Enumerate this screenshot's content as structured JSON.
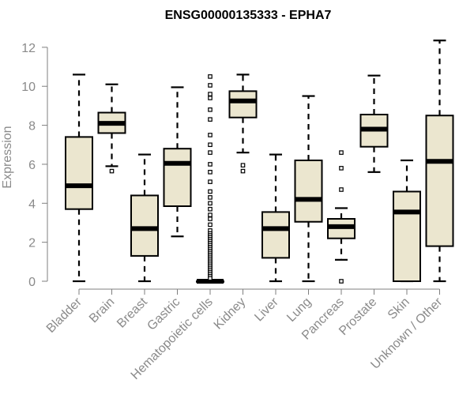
{
  "chart_data": {
    "type": "box",
    "title": "ENSG00000135333 - EPHA7",
    "ylabel": "Expression",
    "xlabel": "",
    "ylim": [
      0,
      12.4
    ],
    "y_ticks": [
      0,
      2,
      4,
      6,
      8,
      10,
      12
    ],
    "colors": {
      "box_fill": "#ebe6cf",
      "box_stroke": "#000000",
      "axis": "#7f7f7f",
      "text": "#8a8a8a",
      "title": "#000000"
    },
    "categories": [
      "Bladder",
      "Brain",
      "Breast",
      "Gastric",
      "Hematopoietic cells",
      "Kidney",
      "Liver",
      "Lung",
      "Pancreas",
      "Prostate",
      "Skin",
      "Unknown / Other"
    ],
    "boxes": [
      {
        "name": "Bladder",
        "min": 0,
        "q1": 3.7,
        "median": 4.9,
        "q3": 7.4,
        "max": 10.6,
        "outliers": []
      },
      {
        "name": "Brain",
        "min": 5.9,
        "q1": 7.6,
        "median": 8.1,
        "q3": 8.65,
        "max": 10.1,
        "outliers": [
          5.65
        ]
      },
      {
        "name": "Breast",
        "min": 0,
        "q1": 1.3,
        "median": 2.7,
        "q3": 4.4,
        "max": 6.5,
        "outliers": []
      },
      {
        "name": "Gastric",
        "min": 2.3,
        "q1": 3.85,
        "median": 6.05,
        "q3": 6.8,
        "max": 9.95,
        "outliers": []
      },
      {
        "name": "Hematopoietic cells",
        "min": 0,
        "q1": 0,
        "median": 0,
        "q3": 0,
        "max": 0,
        "outliers": [
          10.5,
          10.05,
          9.6,
          9.4,
          8.8,
          8.3,
          7.5,
          7.0,
          6.6,
          6.0,
          5.6,
          5.1,
          4.6,
          4.3,
          4.0,
          3.7,
          3.4,
          3.2,
          2.9,
          2.6,
          2.45,
          2.35,
          2.25,
          2.15,
          2.05,
          1.95,
          1.85,
          1.75,
          1.65,
          1.55,
          1.45,
          1.35,
          1.25,
          1.15,
          1.05,
          0.95,
          0.85,
          0.75,
          0.65,
          0.55,
          0.45,
          0.35,
          0.25,
          0.15
        ]
      },
      {
        "name": "Kidney",
        "min": 6.6,
        "q1": 8.4,
        "median": 9.25,
        "q3": 9.75,
        "max": 10.6,
        "outliers": [
          5.95,
          5.65
        ]
      },
      {
        "name": "Liver",
        "min": 0,
        "q1": 1.2,
        "median": 2.7,
        "q3": 3.55,
        "max": 6.5,
        "outliers": []
      },
      {
        "name": "Lung",
        "min": 0,
        "q1": 3.05,
        "median": 4.2,
        "q3": 6.2,
        "max": 9.5,
        "outliers": []
      },
      {
        "name": "Pancreas",
        "min": 1.1,
        "q1": 2.2,
        "median": 2.8,
        "q3": 3.2,
        "max": 3.75,
        "outliers": [
          6.6,
          5.8,
          4.7,
          0
        ]
      },
      {
        "name": "Prostate",
        "min": 5.6,
        "q1": 6.9,
        "median": 7.8,
        "q3": 8.55,
        "max": 10.55,
        "outliers": []
      },
      {
        "name": "Skin",
        "min": 0,
        "q1": 0,
        "median": 3.55,
        "q3": 4.6,
        "max": 6.2,
        "outliers": []
      },
      {
        "name": "Unknown / Other",
        "min": 0,
        "q1": 1.8,
        "median": 6.15,
        "q3": 8.5,
        "max": 12.35,
        "outliers": []
      }
    ]
  }
}
